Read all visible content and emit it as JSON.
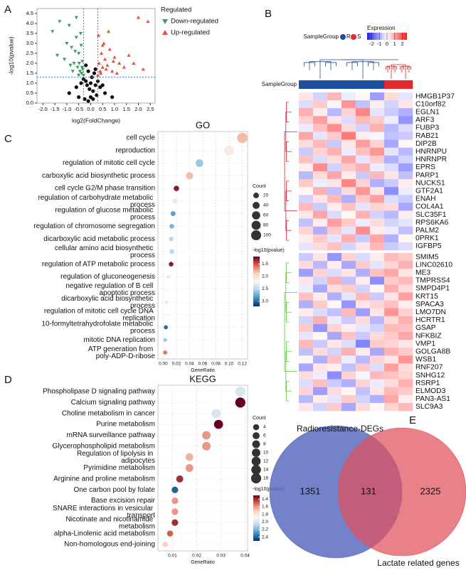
{
  "chart_data": [
    {
      "type": "scatter",
      "panel": "A",
      "xlabel": "log2(FoldChange)",
      "ylabel": "-log10(pvalue)",
      "legend_title": "Regulated",
      "xlim": [
        -2.25,
        2.7
      ],
      "ylim": [
        0,
        4.75
      ],
      "xticks": [
        {
          "value": -2,
          "label": "-2.0"
        },
        -1.5,
        {
          "value": -1,
          "label": "-1.0"
        },
        -0.5,
        {
          "value": 0,
          "label": "0.0"
        },
        0.5,
        {
          "value": 1,
          "label": "1.0"
        },
        1.5,
        {
          "value": 2,
          "label": "2.0"
        },
        2.5
      ],
      "yticks": [
        {
          "value": 0,
          "label": "0.0"
        },
        0.5,
        {
          "value": 1,
          "label": "1.0"
        },
        1.5,
        {
          "value": 2,
          "label": "2.0"
        },
        2.5,
        {
          "value": 3,
          "label": "3.0"
        },
        3.5,
        {
          "value": 4,
          "label": "4.0"
        },
        4.5
      ],
      "thresholds": {
        "x": [
          -0.3,
          0.3
        ],
        "y": 1.3
      },
      "series": [
        {
          "name": "Down-regulated",
          "color": "#3a9d62",
          "marker": "v",
          "x": [
            -1.6,
            -1.3,
            -1.1,
            -0.9,
            -0.8,
            -0.7,
            -0.6,
            -0.55,
            -0.5,
            -0.45,
            -0.4,
            -0.38,
            -0.35,
            -0.33,
            -0.3,
            -1.0,
            -0.85,
            -0.65,
            -0.5,
            -0.42,
            -1.4,
            -0.75,
            -0.6,
            -0.48,
            -0.36
          ],
          "y": [
            3.6,
            4.1,
            2.2,
            3.9,
            2.8,
            2.0,
            3.3,
            1.8,
            2.5,
            1.6,
            2.9,
            1.5,
            2.1,
            1.7,
            1.4,
            3.0,
            1.9,
            2.6,
            1.4,
            3.5,
            2.4,
            1.6,
            4.3,
            2.0,
            1.8
          ]
        },
        {
          "name": "Up-regulated",
          "color": "#e2523f",
          "marker": "^",
          "x": [
            0.3,
            0.35,
            0.4,
            0.45,
            0.5,
            0.55,
            0.6,
            0.7,
            0.8,
            0.9,
            1.0,
            1.2,
            1.4,
            1.6,
            2.0,
            2.4,
            0.33,
            0.42,
            0.5,
            0.65,
            0.75,
            0.95,
            1.1,
            1.8,
            2.2
          ],
          "y": [
            1.4,
            2.0,
            1.6,
            2.5,
            1.8,
            3.0,
            2.2,
            1.9,
            2.7,
            1.6,
            2.3,
            2.0,
            1.8,
            2.4,
            4.3,
            4.1,
            3.4,
            1.5,
            2.9,
            1.7,
            3.6,
            2.1,
            1.5,
            2.0,
            1.7
          ]
        },
        {
          "color": "#111111",
          "marker": "o",
          "x": [
            -0.9,
            -0.6,
            -0.4,
            -0.3,
            -0.2,
            -0.15,
            -0.1,
            -0.05,
            0,
            0.05,
            0.1,
            0.15,
            0.2,
            0.3,
            0.4,
            0.6,
            0.9,
            -0.25,
            0.25,
            -0.1,
            0.1,
            0,
            -0.5,
            0.5,
            -0.2,
            0.2
          ],
          "y": [
            0.5,
            0.8,
            1.0,
            1.2,
            1.1,
            0.9,
            1.6,
            0.7,
            0.3,
            1.3,
            0.6,
            1.5,
            0.9,
            1.1,
            0.8,
            0.5,
            0.3,
            0.2,
            0.4,
            0.1,
            0.2,
            1.0,
            0.3,
            0.9,
            1.9,
            1.7
          ]
        }
      ]
    },
    {
      "type": "heatmap",
      "panel": "B",
      "group_title": "SampleGroup",
      "legend_title": "Expression",
      "groups": [
        {
          "name": "R",
          "color": "#1d4f9c"
        },
        {
          "name": "S",
          "color": "#e02a2f"
        }
      ],
      "column_groups": [
        0,
        0,
        0,
        0,
        0,
        0,
        1,
        1
      ],
      "zlim": [
        -2.6,
        2.6
      ],
      "zticks": [
        -2,
        -1,
        0,
        1,
        2
      ],
      "rows": [
        "HMGB1P37",
        "C10orf82",
        "EGLN1",
        "ARF3",
        "FUBP3",
        "RAB21",
        "DIP2B",
        "HNRNPU",
        "HNRNPR",
        "EPRS",
        "PARP1",
        "NUCKS1",
        "GTF2A1",
        "ENAH",
        "COL4A1",
        "SLC35F1",
        "RPS6KA6",
        "PALM2",
        "0PRK1",
        "IGFBP5",
        "SMIM5",
        "LINC02610",
        "ME3",
        "TMPRSS4",
        "SMPD4P1",
        "KRT15",
        "SPACA3",
        "LMO7DN",
        "HCRTR1",
        "GSAP",
        "NFKBIZ",
        "VMP1",
        "GOLGA8B",
        "WSB1",
        "RNF207",
        "SNHG12",
        "RSRP1",
        "ELMOD3",
        "PAN3-AS1",
        "SLC9A3"
      ],
      "matrix": [
        [
          0.3,
          -0.5,
          0.8,
          -0.2,
          0.1,
          -1.1,
          0.4,
          -0.3
        ],
        [
          -0.4,
          0.6,
          -0.1,
          1.2,
          -0.7,
          0.2,
          -0.5,
          0.3
        ],
        [
          0.9,
          0.2,
          -0.8,
          0.5,
          1.4,
          -0.3,
          -0.6,
          -0.9
        ],
        [
          0.5,
          1.1,
          0.3,
          -0.4,
          0.8,
          0.6,
          -0.2,
          -1.2
        ],
        [
          -0.2,
          0.7,
          1.3,
          0.4,
          -0.5,
          0.9,
          -0.8,
          -0.4
        ],
        [
          1.0,
          -0.3,
          0.6,
          1.5,
          0.2,
          -0.1,
          -0.7,
          -0.6
        ],
        [
          0.4,
          0.8,
          -0.6,
          0.3,
          1.1,
          0.5,
          -1.0,
          0.1
        ],
        [
          -0.6,
          0.5,
          0.9,
          -0.2,
          0.7,
          1.2,
          -0.3,
          -0.8
        ],
        [
          0.7,
          -0.4,
          0.4,
          1.0,
          -0.3,
          0.6,
          -0.9,
          -0.5
        ],
        [
          0.2,
          1.3,
          -0.5,
          0.6,
          0.9,
          -0.2,
          -0.4,
          -1.1
        ],
        [
          -0.8,
          0.4,
          1.0,
          0.2,
          -0.6,
          0.8,
          0.3,
          -0.7
        ],
        [
          0.6,
          -0.2,
          0.3,
          1.4,
          0.5,
          -0.9,
          -0.6,
          0.2
        ],
        [
          0.1,
          0.9,
          -0.7,
          0.4,
          1.2,
          0.3,
          -1.3,
          -0.2
        ],
        [
          -0.5,
          0.3,
          0.8,
          -0.9,
          0.6,
          1.1,
          -0.4,
          -0.6
        ],
        [
          0.8,
          -0.6,
          0.2,
          0.7,
          -0.3,
          0.5,
          0.4,
          -1.0
        ],
        [
          0.3,
          1.0,
          -0.4,
          0.1,
          0.9,
          -0.5,
          -0.8,
          0.2
        ],
        [
          -0.7,
          0.2,
          1.1,
          0.6,
          -0.2,
          0.4,
          -0.5,
          -0.3
        ],
        [
          0.5,
          -0.9,
          0.6,
          -0.3,
          1.3,
          0.2,
          -0.2,
          -0.7
        ],
        [
          0.2,
          0.6,
          -0.3,
          0.9,
          -0.6,
          1.0,
          -0.9,
          0.1
        ],
        [
          -0.3,
          0.4,
          0.7,
          -0.5,
          0.3,
          0.8,
          -0.6,
          -0.4
        ],
        [
          -0.6,
          0.3,
          -1.2,
          0.5,
          -0.4,
          0.2,
          0.8,
          0.6
        ],
        [
          0.4,
          -0.8,
          0.2,
          -1.0,
          0.6,
          -0.3,
          0.5,
          0.9
        ],
        [
          -1.1,
          0.5,
          -0.4,
          0.3,
          -0.9,
          0.7,
          1.0,
          0.3
        ],
        [
          0.3,
          -0.5,
          0.9,
          -0.7,
          0.2,
          -1.3,
          0.6,
          0.8
        ],
        [
          -0.2,
          -1.0,
          0.4,
          0.6,
          -0.5,
          0.1,
          0.9,
          0.4
        ],
        [
          0.7,
          0.2,
          -0.9,
          -0.3,
          0.8,
          -0.6,
          0.3,
          1.1
        ],
        [
          -0.9,
          0.6,
          0.1,
          -1.2,
          0.3,
          0.5,
          0.7,
          0.2
        ],
        [
          0.2,
          -0.4,
          -0.7,
          0.8,
          -1.1,
          0.3,
          1.2,
          0.5
        ],
        [
          -0.5,
          0.9,
          -0.2,
          -0.6,
          0.4,
          -0.8,
          0.4,
          0.9
        ],
        [
          0.6,
          -1.2,
          0.5,
          0.2,
          -0.3,
          -0.5,
          0.8,
          0.7
        ],
        [
          -0.3,
          0.1,
          -1.0,
          0.7,
          -0.6,
          0.4,
          0.6,
          1.0
        ],
        [
          0.8,
          -0.6,
          0.3,
          -0.4,
          -1.4,
          0.6,
          0.5,
          0.3
        ],
        [
          -0.7,
          0.4,
          -0.5,
          0.9,
          0.2,
          -1.0,
          0.9,
          0.6
        ],
        [
          0.1,
          -0.9,
          0.7,
          -0.2,
          -0.8,
          0.5,
          0.3,
          1.2
        ],
        [
          -1.0,
          0.3,
          0.2,
          -0.7,
          0.6,
          -0.4,
          1.1,
          0.4
        ],
        [
          0.4,
          -0.2,
          -1.3,
          0.5,
          -0.1,
          0.8,
          0.7,
          0.5
        ],
        [
          -0.4,
          0.7,
          -0.6,
          -0.9,
          0.5,
          -0.2,
          0.4,
          0.9
        ],
        [
          0.5,
          -1.1,
          0.4,
          0.1,
          -0.7,
          0.3,
          0.8,
          0.6
        ],
        [
          -0.8,
          0.2,
          -0.3,
          0.6,
          -0.5,
          -0.9,
          1.0,
          0.2
        ],
        [
          0.3,
          -0.5,
          0.6,
          -1.0,
          0.4,
          0.1,
          0.5,
          0.8
        ]
      ]
    },
    {
      "type": "bubble",
      "panel": "C",
      "title": "GO",
      "xlabel": "GeneRatio",
      "size_title": "Count",
      "color_title": "-log10(pvalue)",
      "categories": [
        "cell cycle",
        "reproduction",
        "regulation of mitotic cell cycle",
        "carboxylic acid biosynthetic process",
        "cell cycle G2/M phase transition",
        "regulation of carbohydrate metabolic process",
        "regulation of glucose metabolic process",
        "regulation of chromosome segregation",
        "dicarboxylic acid metabolic process",
        "cellular amino acid biosynthetic process",
        "regulation of ATP metabolic process",
        "regulation of gluconeogenesis",
        "negative regulation of B cell apoptotic process",
        "dicarboxylic acid biosynthetic process",
        "regulation of mitotic cell cycle DNA replication",
        "10-formyltetrahydrofolate metabolic process",
        "mitotic DNA replication",
        "ATP generation from poly-ADP-D-ribose"
      ],
      "ratio": [
        0.12,
        0.1,
        0.055,
        0.04,
        0.02,
        0.018,
        0.015,
        0.013,
        0.012,
        0.013,
        0.012,
        0.008,
        0.005,
        0.005,
        0.004,
        0.004,
        0.003,
        0.003
      ],
      "count": [
        110,
        100,
        50,
        40,
        18,
        10,
        12,
        10,
        10,
        12,
        10,
        8,
        5,
        5,
        4,
        6,
        4,
        6
      ],
      "pvalue": [
        1.8,
        2.1,
        2.6,
        1.8,
        1.3,
        2.0,
        2.8,
        2.7,
        2.5,
        2.5,
        1.3,
        2.3,
        2.2,
        2.3,
        2.2,
        3.0,
        2.6,
        1.6
      ],
      "xlim": [
        -0.008,
        0.128
      ],
      "xticks": [
        {
          "value": 0,
          "label": "0.00"
        },
        {
          "value": 0.02,
          "label": "0.02"
        },
        {
          "value": 0.04,
          "label": "0.04"
        },
        {
          "value": 0.06,
          "label": "0.06"
        },
        {
          "value": 0.08,
          "label": "0.08"
        },
        {
          "value": 0.1,
          "label": "0.10"
        },
        {
          "value": 0.12,
          "label": "0.12"
        }
      ],
      "size_ticks": [
        20,
        40,
        60,
        80,
        100
      ],
      "clim": [
        1.2,
        3.2
      ],
      "cticks": [
        1.5,
        {
          "value": 2,
          "label": "2.0"
        },
        2.5,
        {
          "value": 3,
          "label": "3.0"
        }
      ]
    },
    {
      "type": "bubble",
      "panel": "D",
      "title": "KEGG",
      "xlabel": "GeneRatio",
      "size_title": "Count",
      "color_title": "-log10(pvalue)",
      "categories": [
        "Phospholipase D signaling pathway",
        "Calcium signaling pathway",
        "Choline metabolism in cancer",
        "Purine metabolism",
        "mRNA surveillance pathway",
        "Glycerophospholipid metabolism",
        "Regulation of lipolysis in adipocytes",
        "Pyrimidine metabolism",
        "Arginine and proline metabolism",
        "One carbon pool by folate",
        "Base excision repair",
        "SNARE interactions in vesicular transport",
        "Nicotinate and nicotinamide metabolism",
        "alpha-Linolenic acid metabolism",
        "Non-homologous end-joining"
      ],
      "ratio": [
        0.038,
        0.038,
        0.028,
        0.029,
        0.024,
        0.024,
        0.017,
        0.017,
        0.013,
        0.011,
        0.011,
        0.011,
        0.011,
        0.009,
        0.007
      ],
      "count": [
        16,
        16,
        12,
        12,
        10,
        10,
        8,
        8,
        6,
        5,
        5,
        5,
        5,
        4,
        3
      ],
      "pvalue": [
        2.0,
        1.3,
        2.0,
        1.3,
        1.6,
        1.6,
        1.65,
        1.6,
        1.4,
        2.4,
        1.6,
        1.6,
        1.4,
        1.5,
        1.7
      ],
      "xlim": [
        0.004,
        0.041
      ],
      "xticks": [
        {
          "value": 0.01,
          "label": "0.01"
        },
        {
          "value": 0.02,
          "label": "0.02"
        },
        {
          "value": 0.03,
          "label": "0.03"
        },
        {
          "value": 0.04,
          "label": "0.04"
        }
      ],
      "size_ticks": [
        4,
        6,
        8,
        10,
        12,
        14,
        16
      ],
      "clim": [
        1.3,
        2.5
      ],
      "cticks": [
        1.4,
        1.6,
        1.8,
        {
          "value": 2,
          "label": "2.0"
        },
        2.2,
        2.4
      ]
    },
    {
      "type": "venn",
      "panel": "E",
      "sets": [
        {
          "name": "Radioresistance-DEGs",
          "color": "#5a6cc0"
        },
        {
          "name": "Lactate related genes",
          "color": "#e0505a"
        }
      ],
      "values": [
        1351,
        131,
        2325
      ]
    }
  ]
}
